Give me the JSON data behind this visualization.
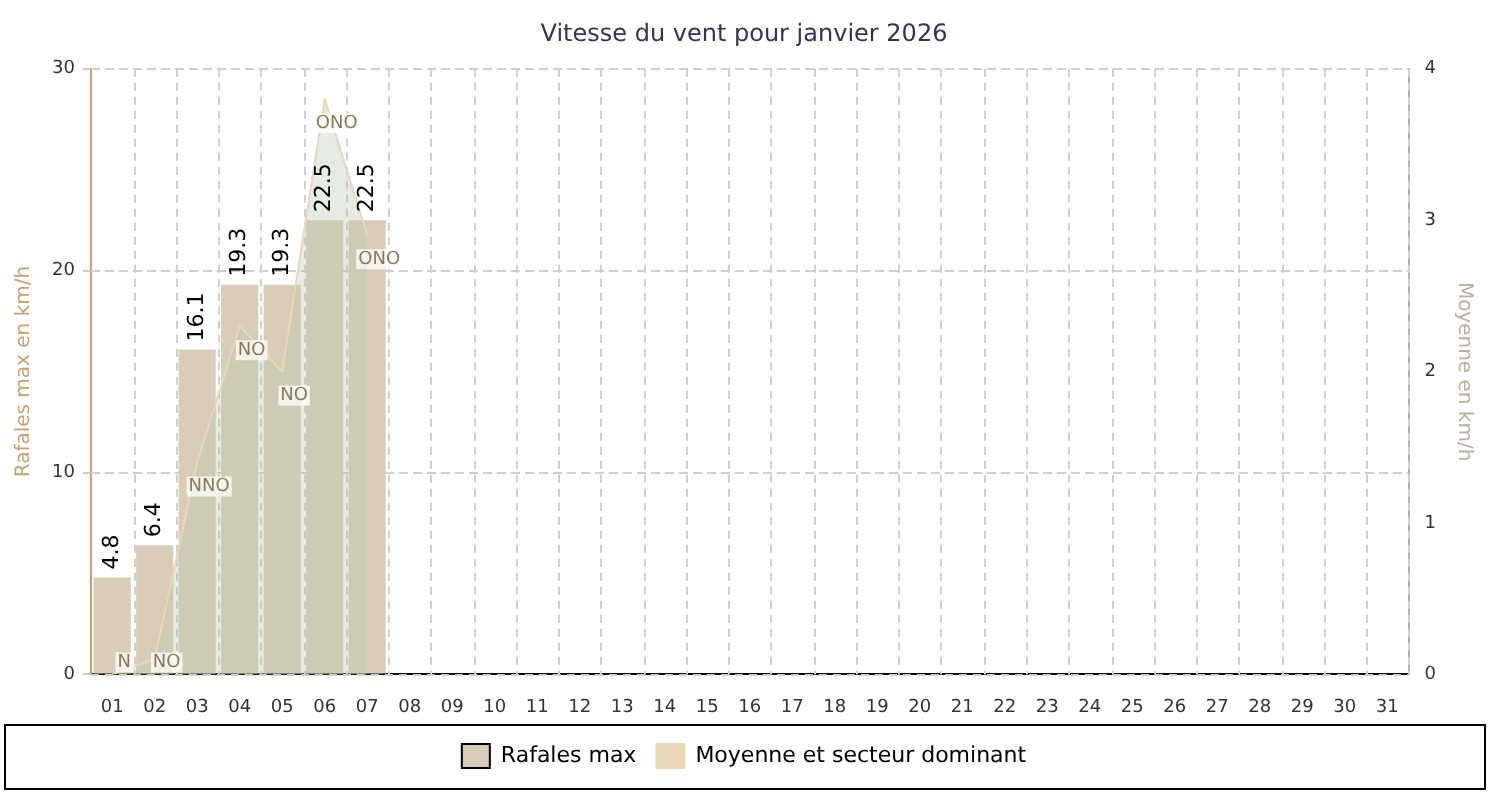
{
  "chart_data": {
    "type": "bar",
    "title": "Vitesse du vent pour janvier 2026",
    "ylabel": "Rafales max en km/h",
    "y2label": "Moyenne en km/h",
    "categories": [
      "01",
      "02",
      "03",
      "04",
      "05",
      "06",
      "07",
      "08",
      "09",
      "10",
      "11",
      "12",
      "13",
      "14",
      "15",
      "16",
      "17",
      "18",
      "19",
      "20",
      "21",
      "22",
      "23",
      "24",
      "25",
      "26",
      "27",
      "28",
      "29",
      "30",
      "31"
    ],
    "series": [
      {
        "name": "Rafales max",
        "color": "#d9cdb9",
        "values": [
          4.8,
          6.4,
          16.1,
          19.3,
          19.3,
          22.5,
          22.5,
          null,
          null,
          null,
          null,
          null,
          null,
          null,
          null,
          null,
          null,
          null,
          null,
          null,
          null,
          null,
          null,
          null,
          null,
          null,
          null,
          null,
          null,
          null,
          null
        ],
        "value_labels": [
          "4.8",
          "6.4",
          "16.1",
          "19.3",
          "19.3",
          "22.5",
          "22.5",
          null,
          null,
          null,
          null,
          null,
          null,
          null,
          null,
          null,
          null,
          null,
          null,
          null,
          null,
          null,
          null,
          null,
          null,
          null,
          null,
          null,
          null,
          null,
          null
        ]
      },
      {
        "name": "Moyenne et secteur dominant",
        "type": "area",
        "axis": "y2",
        "color": "#e8d8b8",
        "values": [
          0,
          0.1,
          1.4,
          2.3,
          2.0,
          3.8,
          2.9,
          null,
          null,
          null,
          null,
          null,
          null,
          null,
          null,
          null,
          null,
          null,
          null,
          null,
          null,
          null,
          null,
          null,
          null,
          null,
          null,
          null,
          null,
          null,
          null
        ],
        "value_labels": [
          "N",
          "NO",
          "NNO",
          "NO",
          "NO",
          "ONO",
          "ONO",
          null,
          null,
          null,
          null,
          null,
          null,
          null,
          null,
          null,
          null,
          null,
          null,
          null,
          null,
          null,
          null,
          null,
          null,
          null,
          null,
          null,
          null,
          null,
          null
        ]
      }
    ],
    "ylim": [
      0,
      30
    ],
    "yticks": [
      0,
      10,
      20,
      30
    ],
    "y2lim": [
      0,
      4
    ],
    "y2ticks": [
      0,
      1,
      2,
      3,
      4
    ],
    "grid": true,
    "legend": "bottom"
  }
}
